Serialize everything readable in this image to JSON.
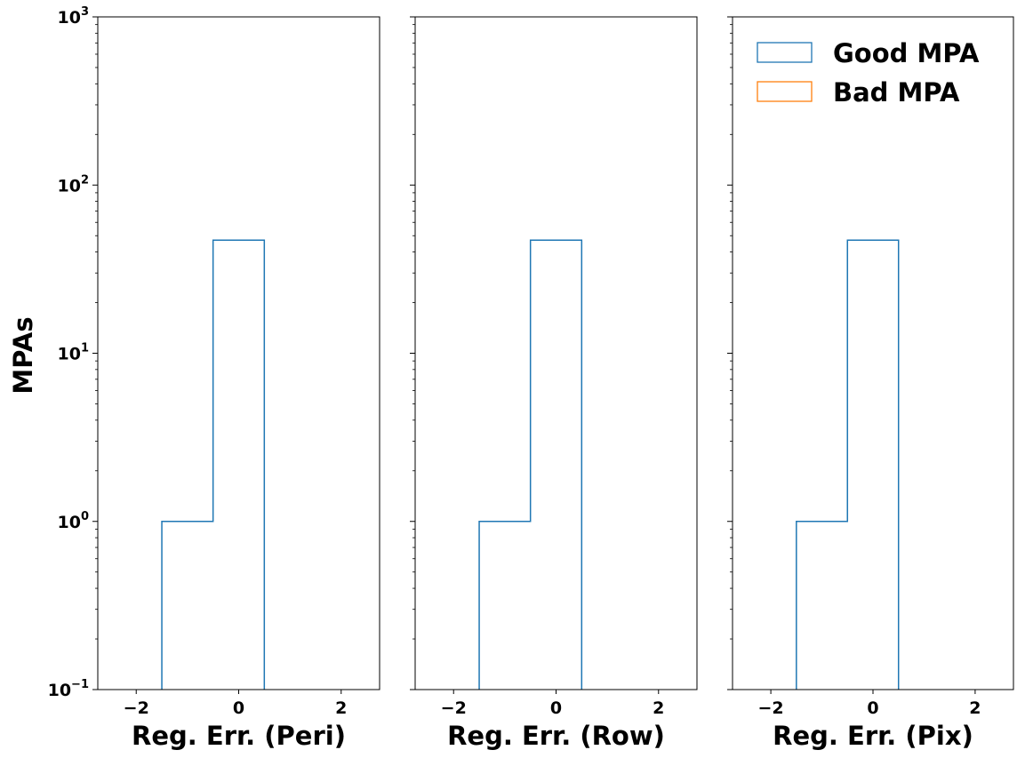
{
  "figure": {
    "ylabel": "MPAs",
    "y_scale": "log",
    "ylim": [
      0.1,
      1000
    ],
    "y_ticks": [
      {
        "base": "10",
        "exp": "−1",
        "value": 0.1
      },
      {
        "base": "10",
        "exp": "0",
        "value": 1
      },
      {
        "base": "10",
        "exp": "1",
        "value": 10
      },
      {
        "base": "10",
        "exp": "2",
        "value": 100
      },
      {
        "base": "10",
        "exp": "3",
        "value": 1000
      }
    ],
    "x_ticks": [
      {
        "label": "−2",
        "value": -2
      },
      {
        "label": "0",
        "value": 0
      },
      {
        "label": "2",
        "value": 2
      }
    ],
    "legend": {
      "placement": "top-right",
      "entries": [
        {
          "label": "Good MPA",
          "color": "#1f77b4"
        },
        {
          "label": "Bad MPA",
          "color": "#ff7f0e"
        }
      ]
    }
  },
  "chart_data": [
    {
      "type": "histogram",
      "xlabel": "Reg. Err. (Peri)",
      "xlim": [
        -2.75,
        2.75
      ],
      "series": [
        {
          "name": "Good MPA",
          "color": "#1f77b4",
          "bin_edges": [
            -1.5,
            -0.5,
            0.5
          ],
          "counts": [
            1,
            47
          ]
        },
        {
          "name": "Bad MPA",
          "color": "#ff7f0e",
          "bin_edges": [],
          "counts": []
        }
      ]
    },
    {
      "type": "histogram",
      "xlabel": "Reg. Err. (Row)",
      "xlim": [
        -2.75,
        2.75
      ],
      "series": [
        {
          "name": "Good MPA",
          "color": "#1f77b4",
          "bin_edges": [
            -1.5,
            -0.5,
            0.5
          ],
          "counts": [
            1,
            47
          ]
        },
        {
          "name": "Bad MPA",
          "color": "#ff7f0e",
          "bin_edges": [],
          "counts": []
        }
      ]
    },
    {
      "type": "histogram",
      "xlabel": "Reg. Err. (Pix)",
      "xlim": [
        -2.75,
        2.75
      ],
      "series": [
        {
          "name": "Good MPA",
          "color": "#1f77b4",
          "bin_edges": [
            -1.5,
            -0.5,
            0.5
          ],
          "counts": [
            1,
            47
          ]
        },
        {
          "name": "Bad MPA",
          "color": "#ff7f0e",
          "bin_edges": [],
          "counts": []
        }
      ]
    }
  ]
}
